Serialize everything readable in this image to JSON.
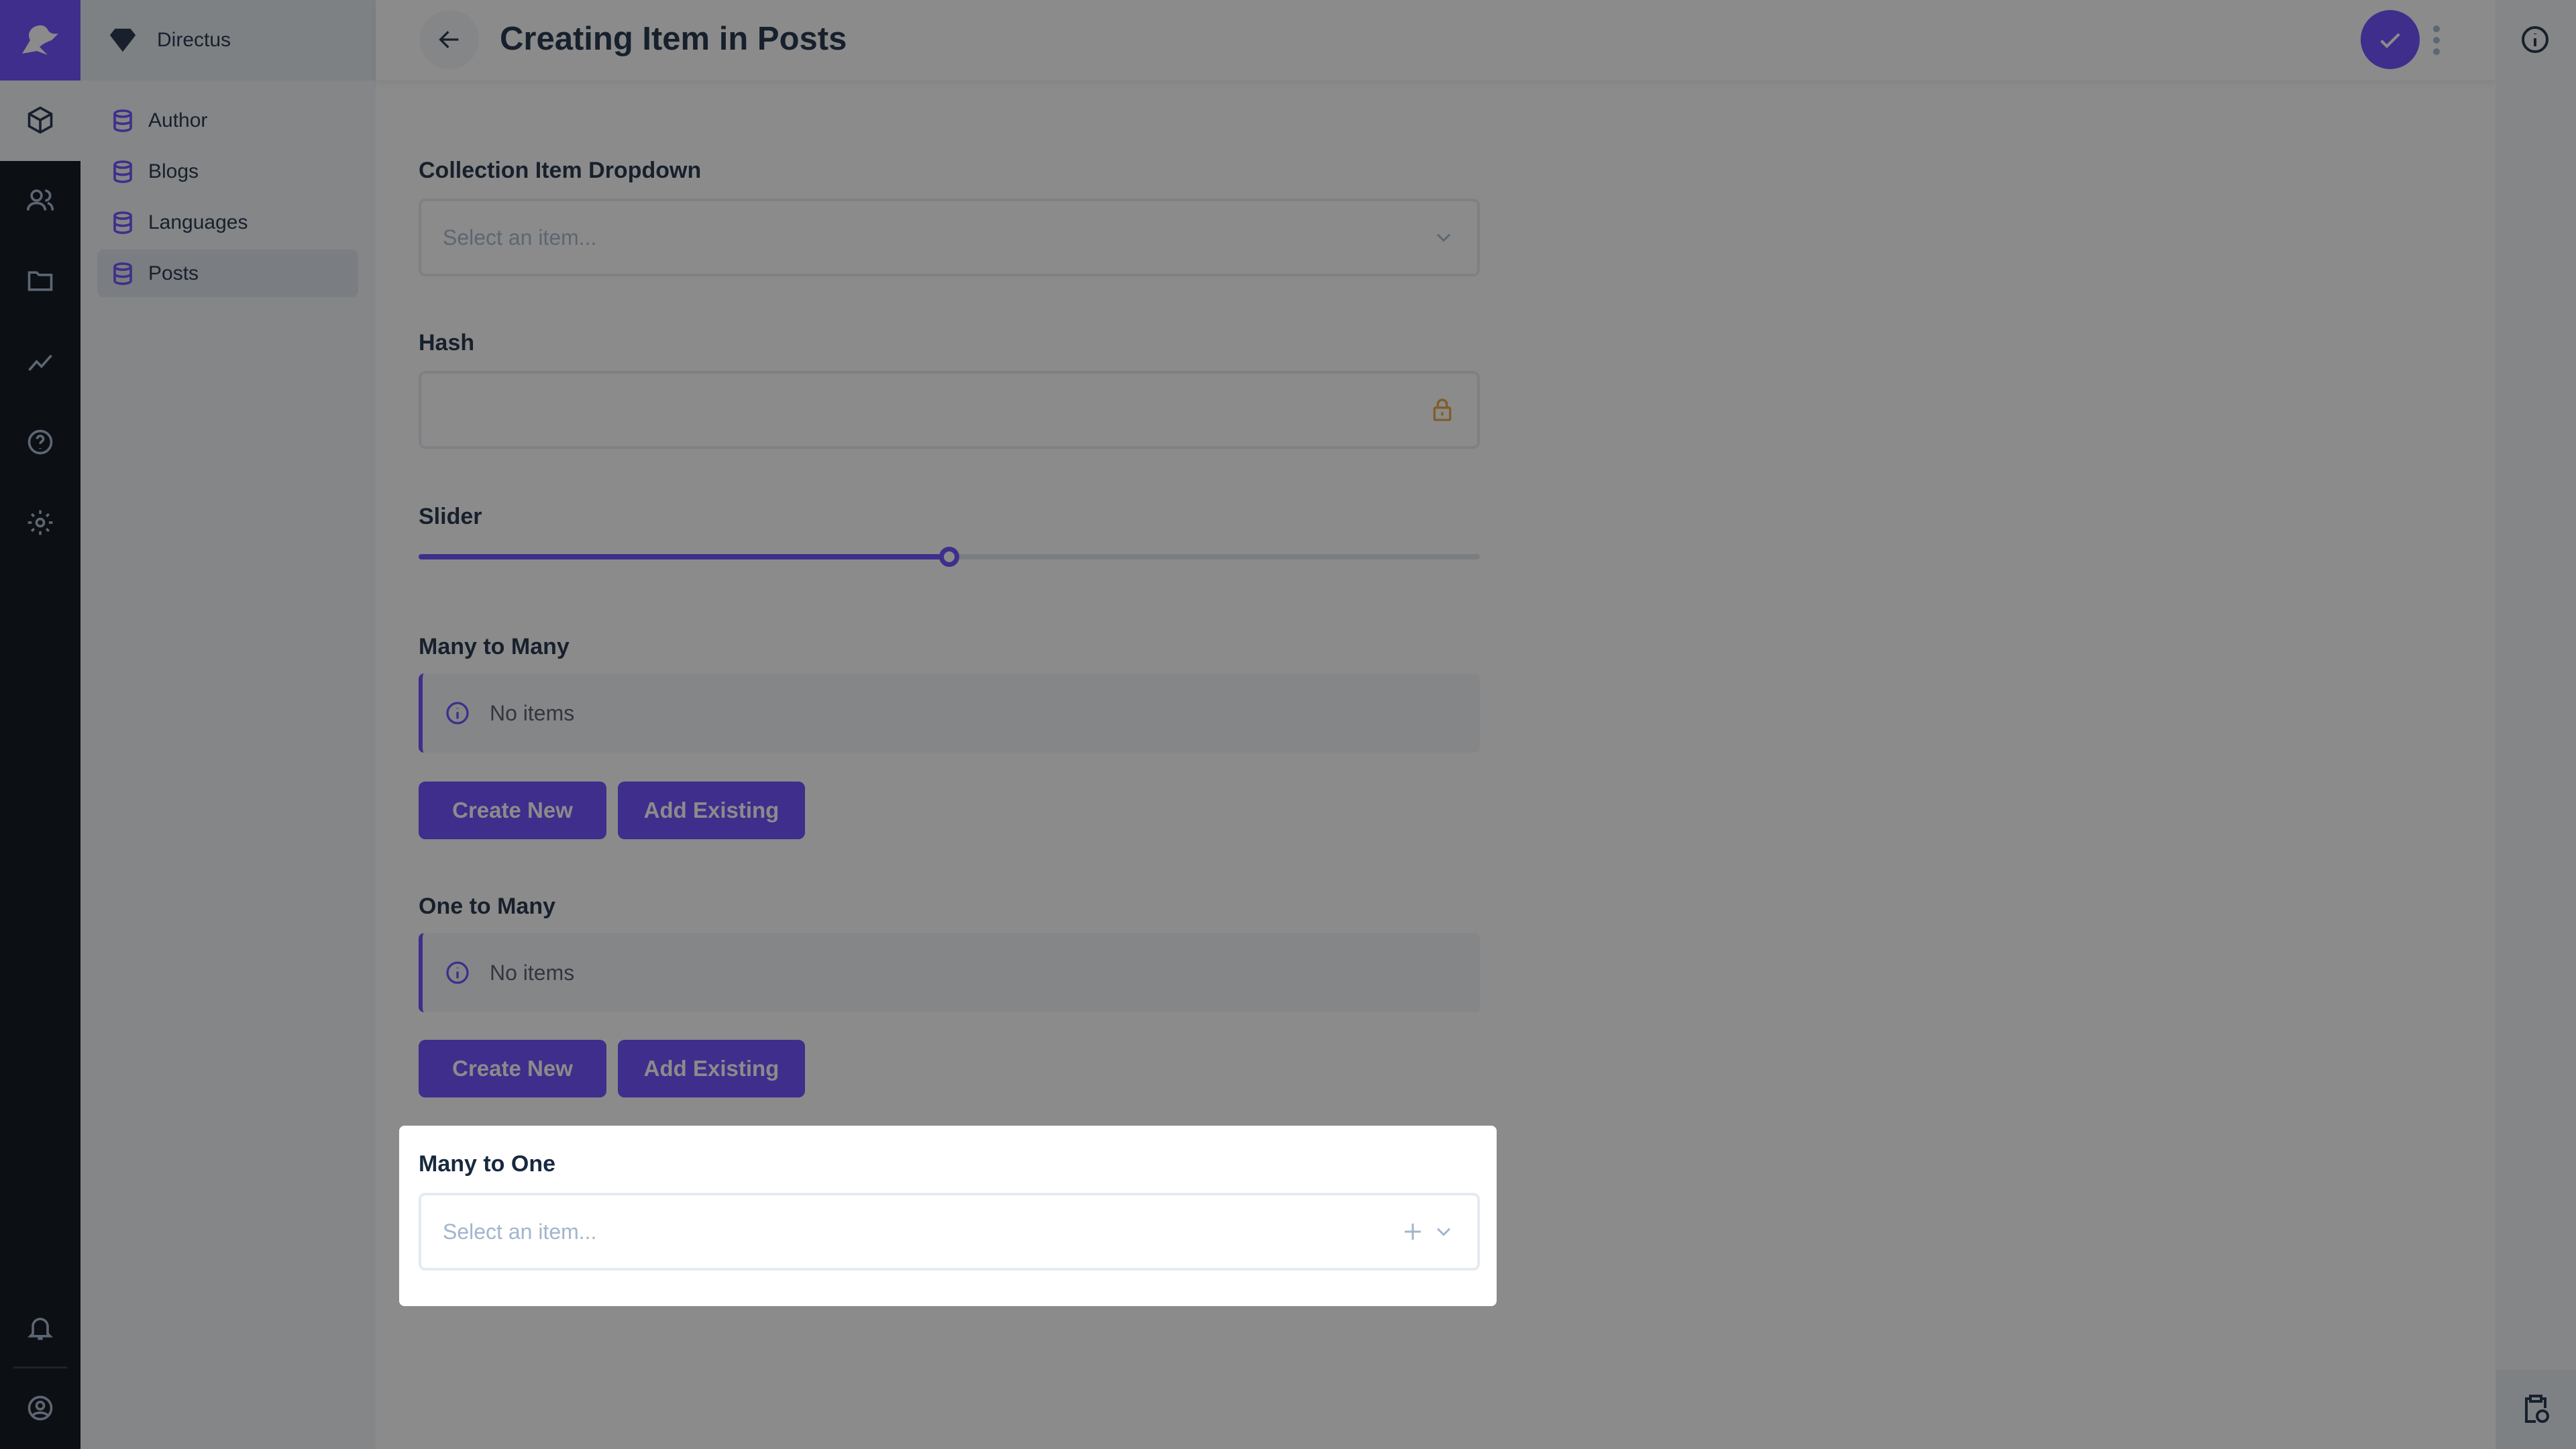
{
  "project": {
    "name": "Directus"
  },
  "nav_rail": {
    "icons": [
      "content-cube-icon",
      "users-icon",
      "folder-icon",
      "insights-icon",
      "help-icon",
      "settings-icon",
      "bell-icon",
      "user-avatar-icon"
    ]
  },
  "sidebar": {
    "items": [
      {
        "label": "Author",
        "active": false
      },
      {
        "label": "Blogs",
        "active": false
      },
      {
        "label": "Languages",
        "active": false
      },
      {
        "label": "Posts",
        "active": true
      }
    ]
  },
  "header": {
    "title": "Creating Item in Posts"
  },
  "fields": {
    "collection_dropdown": {
      "label": "Collection Item Dropdown",
      "placeholder": "Select an item..."
    },
    "hash": {
      "label": "Hash",
      "value": ""
    },
    "slider": {
      "label": "Slider",
      "value_percent": 50
    },
    "many_to_many": {
      "label": "Many to Many",
      "notice": "No items",
      "create_label": "Create New",
      "add_label": "Add Existing"
    },
    "one_to_many": {
      "label": "One to Many",
      "notice": "No items",
      "create_label": "Create New",
      "add_label": "Add Existing"
    },
    "many_to_one": {
      "label": "Many to One",
      "placeholder": "Select an item..."
    }
  },
  "colors": {
    "accent": "#6644ff",
    "lock": "#e6a23c"
  }
}
